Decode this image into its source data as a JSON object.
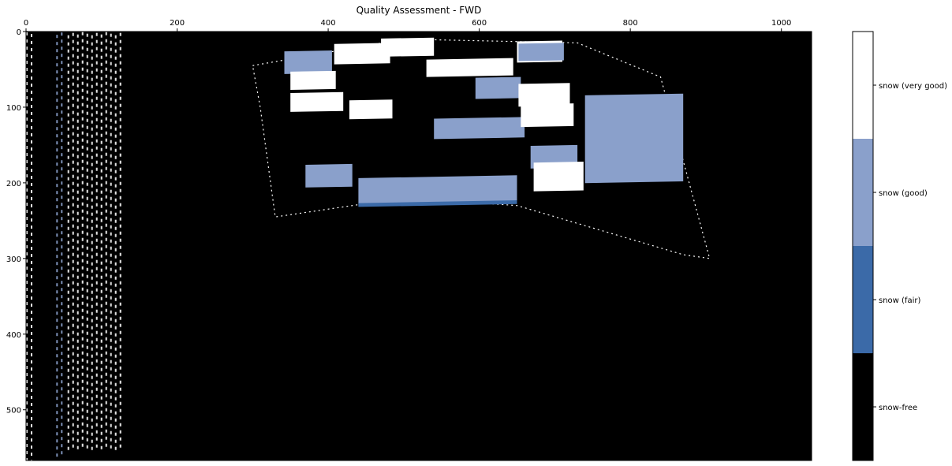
{
  "chart_data": {
    "type": "heatmap",
    "title": "Quality Assessment - FWD",
    "xlabel": "",
    "ylabel": "",
    "xlim": [
      0,
      1040
    ],
    "ylim": [
      567,
      0
    ],
    "x_ticks": [
      0,
      200,
      400,
      600,
      800,
      1000
    ],
    "y_ticks": [
      0,
      100,
      200,
      300,
      400,
      500
    ],
    "x_axis_position": "top",
    "y_axis_inverted": true,
    "grid": false,
    "colorbar": {
      "position": "right",
      "categories": [
        {
          "label": "snow-free",
          "color": "#000000"
        },
        {
          "label": "snow (fair)",
          "color": "#3b6aa8"
        },
        {
          "label": "snow (good)",
          "color": "#8aa0cb"
        },
        {
          "label": "snow (very good)",
          "color": "#ffffff"
        }
      ]
    },
    "regions": [
      {
        "category": "snow (good)",
        "x": [
          342,
          405
        ],
        "y": [
          25,
          55
        ]
      },
      {
        "category": "snow (very good)",
        "x": [
          408,
          482
        ],
        "y": [
          15,
          42
        ]
      },
      {
        "category": "snow (very good)",
        "x": [
          470,
          540
        ],
        "y": [
          8,
          32
        ]
      },
      {
        "category": "snow (very good)",
        "x": [
          530,
          645
        ],
        "y": [
          35,
          58
        ]
      },
      {
        "category": "snow (very good)",
        "x": [
          650,
          710
        ],
        "y": [
          12,
          40
        ]
      },
      {
        "category": "snow (good)",
        "x": [
          652,
          712
        ],
        "y": [
          15,
          38
        ]
      },
      {
        "category": "snow (very good)",
        "x": [
          350,
          410
        ],
        "y": [
          52,
          76
        ]
      },
      {
        "category": "snow (very good)",
        "x": [
          350,
          420
        ],
        "y": [
          80,
          105
        ]
      },
      {
        "category": "snow (good)",
        "x": [
          595,
          655
        ],
        "y": [
          60,
          88
        ]
      },
      {
        "category": "snow (very good)",
        "x": [
          652,
          720
        ],
        "y": [
          68,
          98
        ]
      },
      {
        "category": "snow (very good)",
        "x": [
          428,
          485
        ],
        "y": [
          90,
          115
        ]
      },
      {
        "category": "snow (good)",
        "x": [
          540,
          660
        ],
        "y": [
          113,
          140
        ]
      },
      {
        "category": "snow (very good)",
        "x": [
          655,
          725
        ],
        "y": [
          95,
          125
        ]
      },
      {
        "category": "snow (good)",
        "x": [
          668,
          730
        ],
        "y": [
          150,
          180
        ]
      },
      {
        "category": "snow (very good)",
        "x": [
          672,
          738
        ],
        "y": [
          172,
          210
        ]
      },
      {
        "category": "snow (good)",
        "x": [
          740,
          870
        ],
        "y": [
          82,
          198
        ]
      },
      {
        "category": "snow (good)",
        "x": [
          370,
          432
        ],
        "y": [
          175,
          205
        ]
      },
      {
        "category": "snow (good)",
        "x": [
          440,
          650
        ],
        "y": [
          190,
          225
        ]
      },
      {
        "category": "snow (fair)",
        "x": [
          440,
          650
        ],
        "y": [
          223,
          228
        ]
      }
    ],
    "swath_outline": {
      "category": "snow (very good)",
      "points": [
        [
          300,
          45
        ],
        [
          500,
          10
        ],
        [
          730,
          15
        ],
        [
          840,
          60
        ],
        [
          905,
          300
        ],
        [
          870,
          295
        ],
        [
          650,
          230
        ],
        [
          500,
          220
        ],
        [
          330,
          245
        ],
        [
          310,
          100
        ]
      ]
    },
    "stripes": [
      {
        "category": "snow (very good)",
        "x": [
          0,
          8
        ],
        "y": [
          0,
          567
        ]
      },
      {
        "category": "snow (good)",
        "x": [
          40,
          48
        ],
        "y": [
          0,
          555
        ]
      },
      {
        "category": "snow (very good)",
        "x": [
          55,
          125
        ],
        "y": [
          0,
          550
        ]
      }
    ]
  }
}
